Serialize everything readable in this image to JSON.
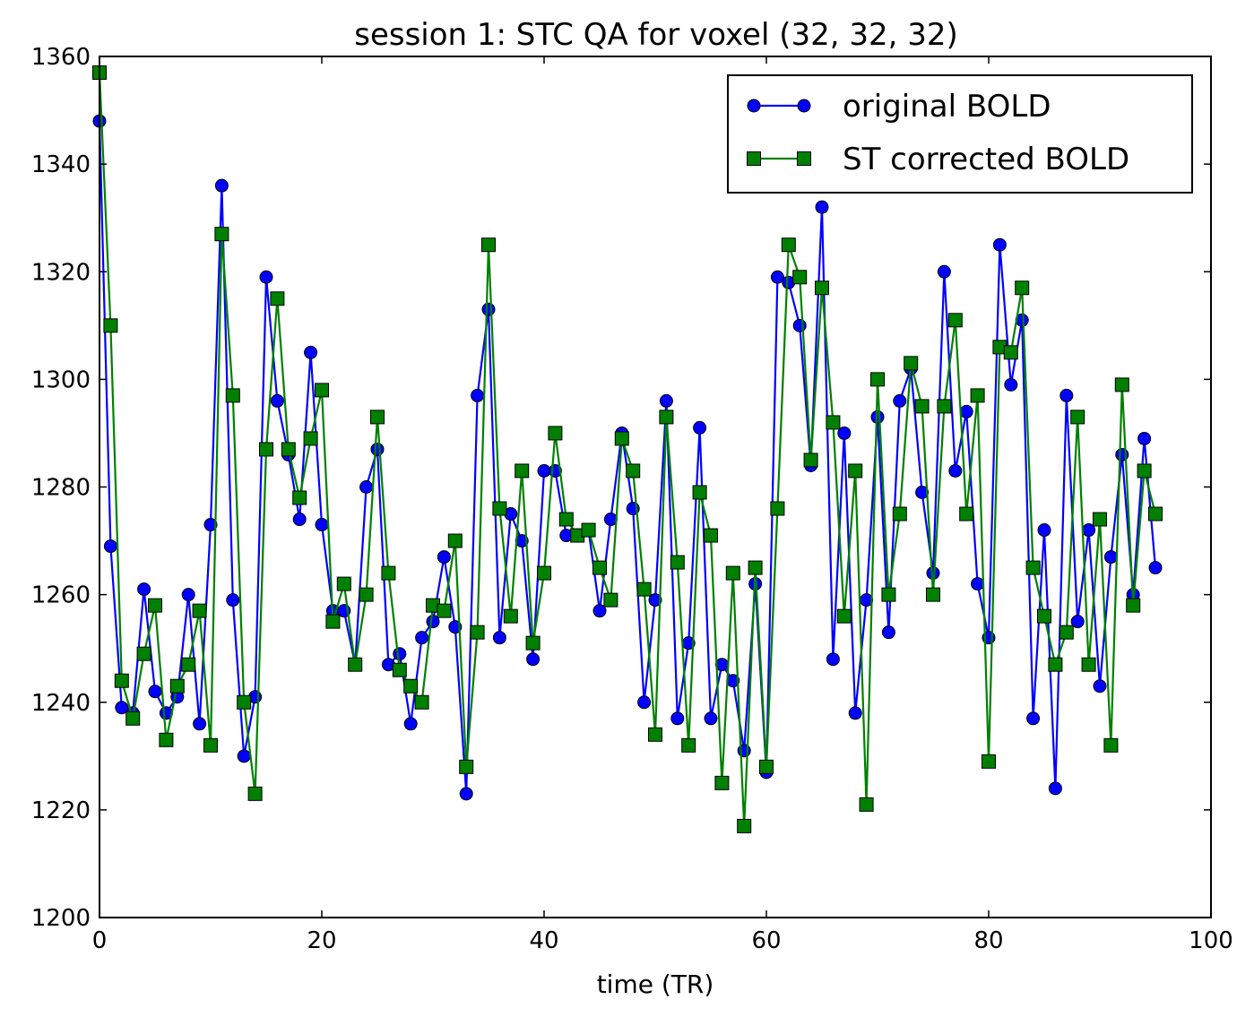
{
  "chart_data": {
    "type": "line",
    "title": "session 1: STC QA for voxel (32, 32, 32)",
    "xlabel": "time (TR)",
    "ylabel": "",
    "xlim": [
      0,
      100
    ],
    "ylim": [
      1200,
      1360
    ],
    "xticks": [
      0,
      20,
      40,
      60,
      80,
      100
    ],
    "yticks": [
      1200,
      1220,
      1240,
      1260,
      1280,
      1300,
      1320,
      1340,
      1360
    ],
    "grid": false,
    "legend_position": "top-right",
    "series": [
      {
        "name": "original BOLD",
        "color": "#0000ff",
        "marker": "circle",
        "values": [
          1348,
          1269,
          1239,
          1238,
          1261,
          1242,
          1238,
          1241,
          1260,
          1236,
          1273,
          1336,
          1259,
          1230,
          1241,
          1319,
          1296,
          1286,
          1274,
          1305,
          1273,
          1257,
          1257,
          1247,
          1280,
          1287,
          1247,
          1249,
          1236,
          1252,
          1255,
          1267,
          1254,
          1223,
          1297,
          1313,
          1252,
          1275,
          1270,
          1248,
          1283,
          1283,
          1271,
          1271,
          1272,
          1257,
          1274,
          1290,
          1276,
          1240,
          1259,
          1296,
          1237,
          1251,
          1291,
          1237,
          1247,
          1244,
          1231,
          1262,
          1227,
          1319,
          1318,
          1310,
          1284,
          1332,
          1248,
          1290,
          1238,
          1259,
          1293,
          1253,
          1296,
          1302,
          1279,
          1264,
          1320,
          1283,
          1294,
          1262,
          1252,
          1325,
          1299,
          1311,
          1237,
          1272,
          1224,
          1297,
          1255,
          1272,
          1243,
          1267,
          1286,
          1260,
          1289,
          1265
        ]
      },
      {
        "name": "ST corrected BOLD",
        "color": "#008000",
        "marker": "square",
        "values": [
          1357,
          1310,
          1244,
          1237,
          1249,
          1258,
          1233,
          1243,
          1247,
          1257,
          1232,
          1327,
          1297,
          1240,
          1223,
          1287,
          1315,
          1287,
          1278,
          1289,
          1298,
          1255,
          1262,
          1247,
          1260,
          1293,
          1264,
          1246,
          1243,
          1240,
          1258,
          1257,
          1270,
          1228,
          1253,
          1325,
          1276,
          1256,
          1283,
          1251,
          1264,
          1290,
          1274,
          1271,
          1272,
          1265,
          1259,
          1289,
          1283,
          1261,
          1234,
          1293,
          1266,
          1232,
          1279,
          1271,
          1225,
          1264,
          1217,
          1265,
          1228,
          1276,
          1325,
          1319,
          1285,
          1317,
          1292,
          1256,
          1283,
          1221,
          1300,
          1260,
          1275,
          1303,
          1295,
          1260,
          1295,
          1311,
          1275,
          1297,
          1229,
          1306,
          1305,
          1317,
          1265,
          1256,
          1247,
          1253,
          1293,
          1247,
          1274,
          1232,
          1299,
          1258,
          1283,
          1275
        ]
      }
    ]
  }
}
